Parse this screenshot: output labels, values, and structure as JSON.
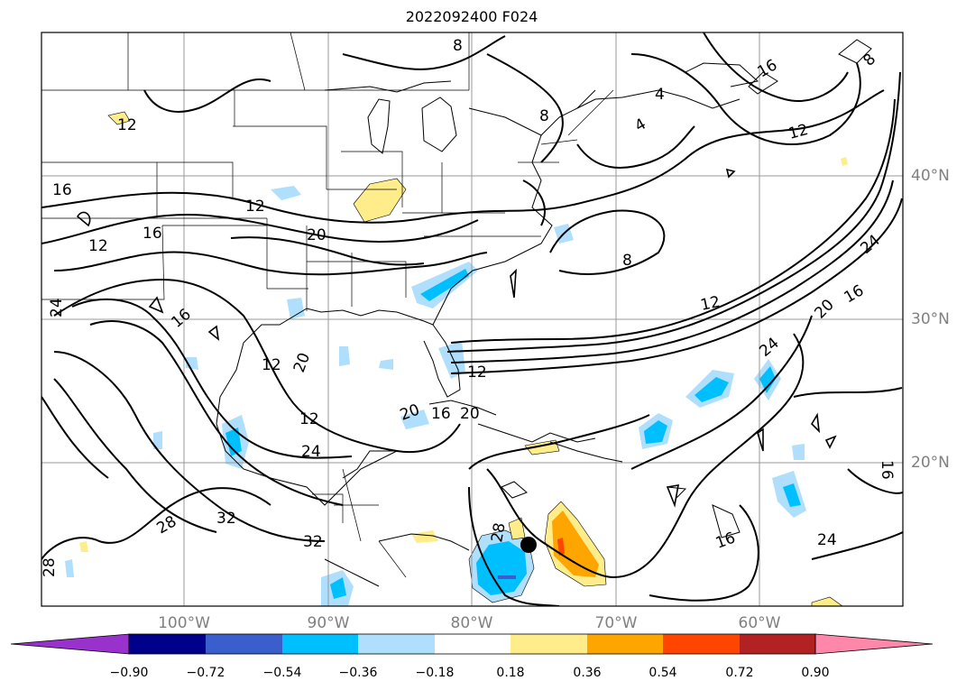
{
  "title": "2022092400 F024",
  "lon_labels": [
    "100°W",
    "90°W",
    "80°W",
    "70°W",
    "60°W"
  ],
  "lat_labels": [
    "40°N",
    "30°N",
    "20°N"
  ],
  "contour_labels": [
    "8",
    "16",
    "4",
    "12",
    "8",
    "4",
    "12",
    "16",
    "12",
    "20",
    "12",
    "16",
    "8",
    "8",
    "12",
    "16",
    "20",
    "24",
    "24",
    "16",
    "12",
    "20",
    "20",
    "16",
    "12",
    "20",
    "24",
    "24",
    "28",
    "32",
    "32",
    "28",
    "28",
    "16",
    "24",
    "16",
    "12"
  ],
  "colorbar": {
    "ticks": [
      "−0.90",
      "−0.72",
      "−0.54",
      "−0.36",
      "−0.18",
      "0.18",
      "0.36",
      "0.54",
      "0.72",
      "0.90"
    ],
    "colors": [
      "#9932cc",
      "#00008b",
      "#3a5fcd",
      "#00bfff",
      "#afdffc",
      "#ffffff",
      "#ffec8b",
      "#ffa500",
      "#ff4500",
      "#b22222",
      "#ff88aa"
    ]
  },
  "colors": {
    "contour": "#000000",
    "grid": "#999999",
    "state_lines": "#000000",
    "marker": "#000000"
  },
  "marker": "storm-center-dot"
}
